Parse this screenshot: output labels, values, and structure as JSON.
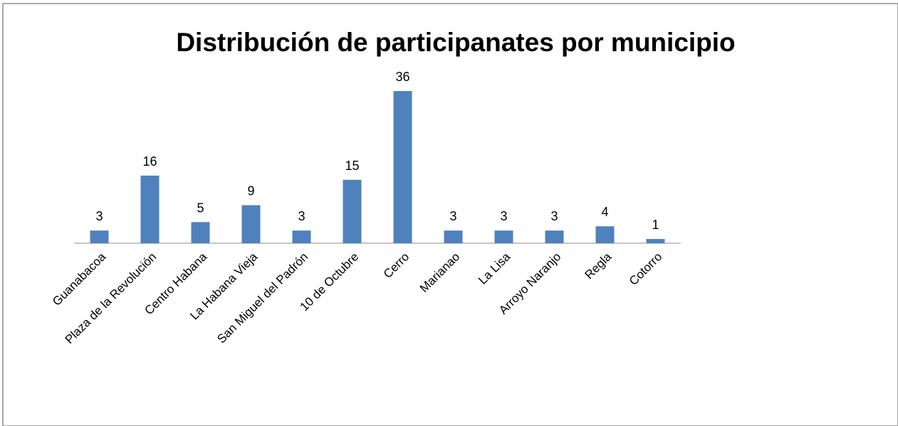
{
  "chart_data": {
    "type": "bar",
    "title": "Distribución de participanates por municipio",
    "categories": [
      "Guanabacoa",
      "Plaza de la Revolución",
      "Centro Habana",
      "La Habana Vieja",
      "San Miguel del Padrón",
      "10 de Octubre",
      "Cerro",
      "Marianao",
      "La Lisa",
      "Arroyo Naranjo",
      "Regla",
      "Cotorro"
    ],
    "values": [
      3,
      16,
      5,
      9,
      3,
      15,
      36,
      3,
      3,
      3,
      4,
      1
    ],
    "color": "#4f81bd"
  }
}
